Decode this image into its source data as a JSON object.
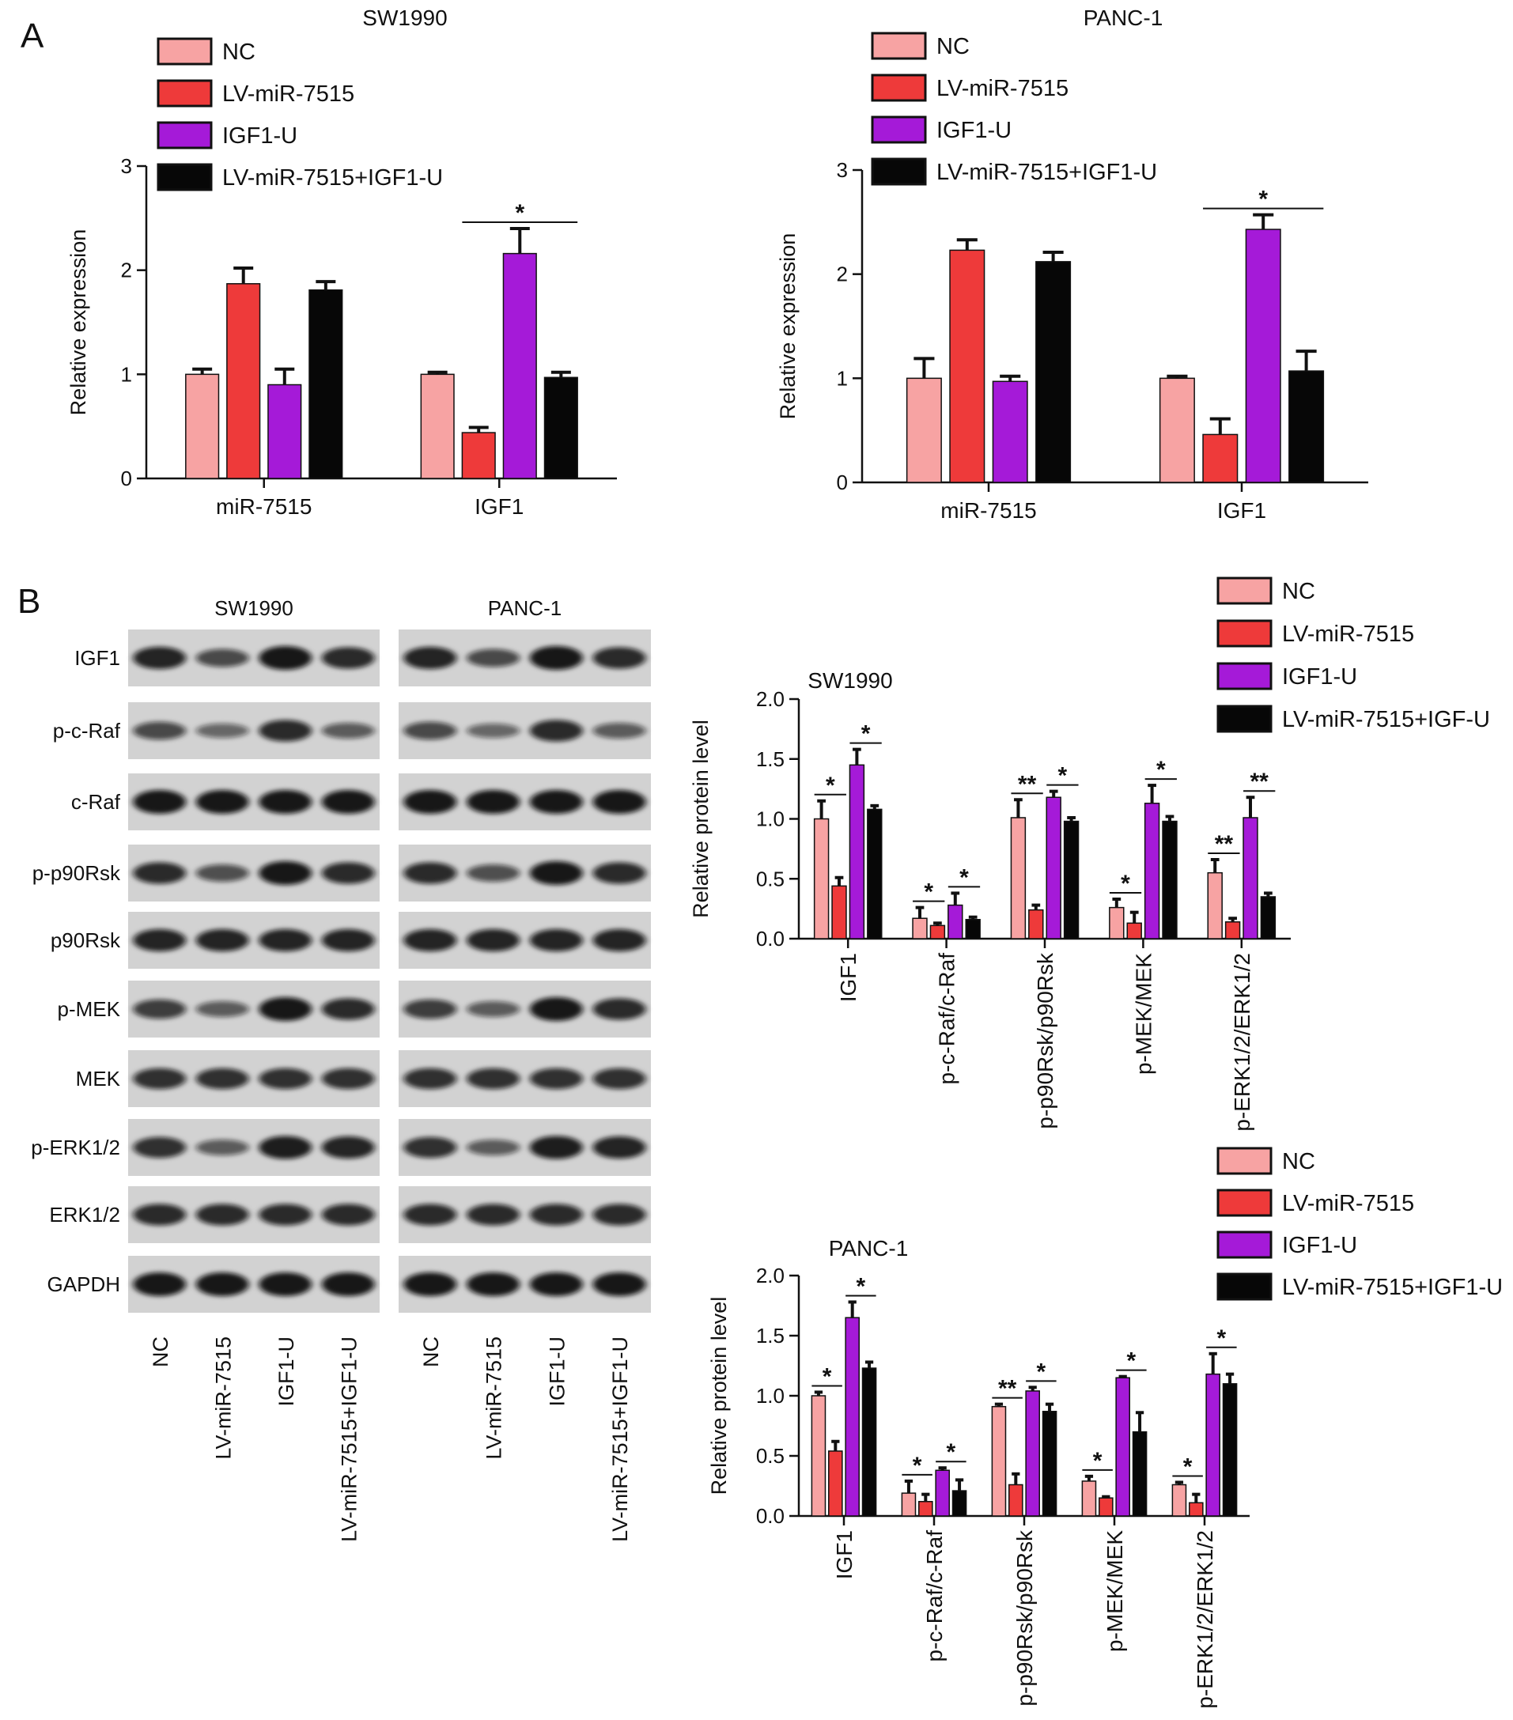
{
  "panels": {
    "a": "A",
    "b": "B"
  },
  "colors": {
    "NC": "#f7a3a3",
    "LV-miR-7515": "#ee3a3a",
    "IGF1-U": "#a51ad8",
    "combo": "#070707"
  },
  "legend_a": [
    "NC",
    "LV-miR-7515",
    "IGF1-U",
    "LV-miR-7515+IGF1-U"
  ],
  "legend_b_sw": [
    "NC",
    "LV-miR-7515",
    "IGF1-U",
    "LV-miR-7515+IGF-U"
  ],
  "legend_b_panc": [
    "NC",
    "LV-miR-7515",
    "IGF1-U",
    "LV-miR-7515+IGF1-U"
  ],
  "blot": {
    "groups": [
      "SW1990",
      "PANC-1"
    ],
    "rows": [
      "IGF1",
      "p-c-Raf",
      "c-Raf",
      "p-p90Rsk",
      "p90Rsk",
      "p-MEK",
      "MEK",
      "p-ERK1/2",
      "ERK1/2",
      "GAPDH"
    ],
    "lanes": [
      "NC",
      "LV-miR-7515",
      "IGF1-U",
      "LV-miR-7515+IGF1-U"
    ]
  },
  "chart_data": [
    {
      "id": "A-SW1990",
      "type": "bar",
      "title": "SW1990",
      "xlabel": "",
      "ylabel": "Relative expression",
      "ylim": [
        0,
        3
      ],
      "yticks": [
        "0",
        "1",
        "2",
        "3"
      ],
      "categories": [
        "miR-7515",
        "IGF1"
      ],
      "series": [
        {
          "name": "NC",
          "values": [
            1.0,
            1.0
          ],
          "errors": [
            0.05,
            0.02
          ]
        },
        {
          "name": "LV-miR-7515",
          "values": [
            1.87,
            0.44
          ],
          "errors": [
            0.15,
            0.05
          ]
        },
        {
          "name": "IGF1-U",
          "values": [
            0.9,
            2.16
          ],
          "errors": [
            0.15,
            0.24
          ]
        },
        {
          "name": "LV-miR-7515+IGF1-U",
          "values": [
            1.81,
            0.97
          ],
          "errors": [
            0.08,
            0.05
          ]
        }
      ],
      "significance": [
        {
          "category": 1,
          "from": 1,
          "to": 3,
          "label": "*"
        }
      ]
    },
    {
      "id": "A-PANC-1",
      "type": "bar",
      "title": "PANC-1",
      "xlabel": "",
      "ylabel": "Relative expression",
      "ylim": [
        0,
        3
      ],
      "yticks": [
        "0",
        "1",
        "2",
        "3"
      ],
      "categories": [
        "miR-7515",
        "IGF1"
      ],
      "series": [
        {
          "name": "NC",
          "values": [
            1.0,
            1.0
          ],
          "errors": [
            0.19,
            0.02
          ]
        },
        {
          "name": "LV-miR-7515",
          "values": [
            2.23,
            0.46
          ],
          "errors": [
            0.1,
            0.15
          ]
        },
        {
          "name": "IGF1-U",
          "values": [
            0.97,
            2.43
          ],
          "errors": [
            0.05,
            0.14
          ]
        },
        {
          "name": "LV-miR-7515+IGF1-U",
          "values": [
            2.12,
            1.07
          ],
          "errors": [
            0.09,
            0.19
          ]
        }
      ],
      "significance": [
        {
          "category": 1,
          "from": 1,
          "to": 3,
          "label": "*"
        }
      ]
    },
    {
      "id": "B-SW1990",
      "type": "bar",
      "title": "SW1990",
      "xlabel": "",
      "ylabel": "Relative protein level",
      "ylim": [
        0,
        2.0
      ],
      "yticks": [
        "0.0",
        "0.5",
        "1.0",
        "1.5",
        "2.0"
      ],
      "categories": [
        "IGF1",
        "p-c-Raf/c-Raf",
        "p-p90Rsk/p90Rsk",
        "p-MEK/MEK",
        "p-ERK1/2/ERK1/2"
      ],
      "series": [
        {
          "name": "NC",
          "values": [
            1.0,
            0.17,
            1.01,
            0.26,
            0.55
          ],
          "errors": [
            0.15,
            0.09,
            0.15,
            0.07,
            0.11
          ]
        },
        {
          "name": "LV-miR-7515",
          "values": [
            0.44,
            0.11,
            0.24,
            0.13,
            0.14
          ],
          "errors": [
            0.07,
            0.02,
            0.04,
            0.09,
            0.03
          ]
        },
        {
          "name": "IGF1-U",
          "values": [
            1.45,
            0.28,
            1.18,
            1.13,
            1.01
          ],
          "errors": [
            0.13,
            0.1,
            0.05,
            0.15,
            0.17
          ]
        },
        {
          "name": "LV-miR-7515+IGF-U",
          "values": [
            1.08,
            0.16,
            0.98,
            0.98,
            0.35
          ],
          "errors": [
            0.03,
            0.02,
            0.03,
            0.04,
            0.03
          ]
        }
      ],
      "significance": [
        {
          "category": 0,
          "from": 0,
          "to": 1,
          "label": "*"
        },
        {
          "category": 0,
          "from": 2,
          "to": 3,
          "label": "*"
        },
        {
          "category": 1,
          "from": 0,
          "to": 1,
          "label": "*"
        },
        {
          "category": 1,
          "from": 2,
          "to": 3,
          "label": "*"
        },
        {
          "category": 2,
          "from": 0,
          "to": 1,
          "label": "**"
        },
        {
          "category": 2,
          "from": 2,
          "to": 3,
          "label": "*"
        },
        {
          "category": 3,
          "from": 0,
          "to": 1,
          "label": "*"
        },
        {
          "category": 3,
          "from": 2,
          "to": 3,
          "label": "*"
        },
        {
          "category": 4,
          "from": 0,
          "to": 1,
          "label": "**"
        },
        {
          "category": 4,
          "from": 2,
          "to": 3,
          "label": "**"
        }
      ]
    },
    {
      "id": "B-PANC-1",
      "type": "bar",
      "title": "PANC-1",
      "xlabel": "",
      "ylabel": "Relative protein level",
      "ylim": [
        0,
        2.0
      ],
      "yticks": [
        "0.0",
        "0.5",
        "1.0",
        "1.5",
        "2.0"
      ],
      "categories": [
        "IGF1",
        "p-c-Raf/c-Raf",
        "p-p90Rsk/p90Rsk",
        "p-MEK/MEK",
        "p-ERK1/2/ERK1/2"
      ],
      "series": [
        {
          "name": "NC",
          "values": [
            1.0,
            0.19,
            0.91,
            0.29,
            0.26
          ],
          "errors": [
            0.03,
            0.1,
            0.02,
            0.04,
            0.02
          ]
        },
        {
          "name": "LV-miR-7515",
          "values": [
            0.54,
            0.12,
            0.26,
            0.15,
            0.11
          ],
          "errors": [
            0.08,
            0.06,
            0.09,
            0.01,
            0.07
          ]
        },
        {
          "name": "IGF1-U",
          "values": [
            1.65,
            0.38,
            1.04,
            1.15,
            1.18
          ],
          "errors": [
            0.13,
            0.02,
            0.03,
            0.01,
            0.17
          ]
        },
        {
          "name": "LV-miR-7515+IGF1-U",
          "values": [
            1.23,
            0.21,
            0.87,
            0.7,
            1.1
          ],
          "errors": [
            0.05,
            0.09,
            0.06,
            0.16,
            0.08
          ]
        }
      ],
      "significance": [
        {
          "category": 0,
          "from": 0,
          "to": 1,
          "label": "*"
        },
        {
          "category": 0,
          "from": 2,
          "to": 3,
          "label": "*"
        },
        {
          "category": 1,
          "from": 0,
          "to": 1,
          "label": "*"
        },
        {
          "category": 1,
          "from": 2,
          "to": 3,
          "label": "*"
        },
        {
          "category": 2,
          "from": 0,
          "to": 1,
          "label": "**"
        },
        {
          "category": 2,
          "from": 2,
          "to": 3,
          "label": "*"
        },
        {
          "category": 3,
          "from": 0,
          "to": 1,
          "label": "*"
        },
        {
          "category": 3,
          "from": 2,
          "to": 3,
          "label": "*"
        },
        {
          "category": 4,
          "from": 0,
          "to": 1,
          "label": "*"
        },
        {
          "category": 4,
          "from": 2,
          "to": 3,
          "label": "*"
        }
      ]
    }
  ]
}
